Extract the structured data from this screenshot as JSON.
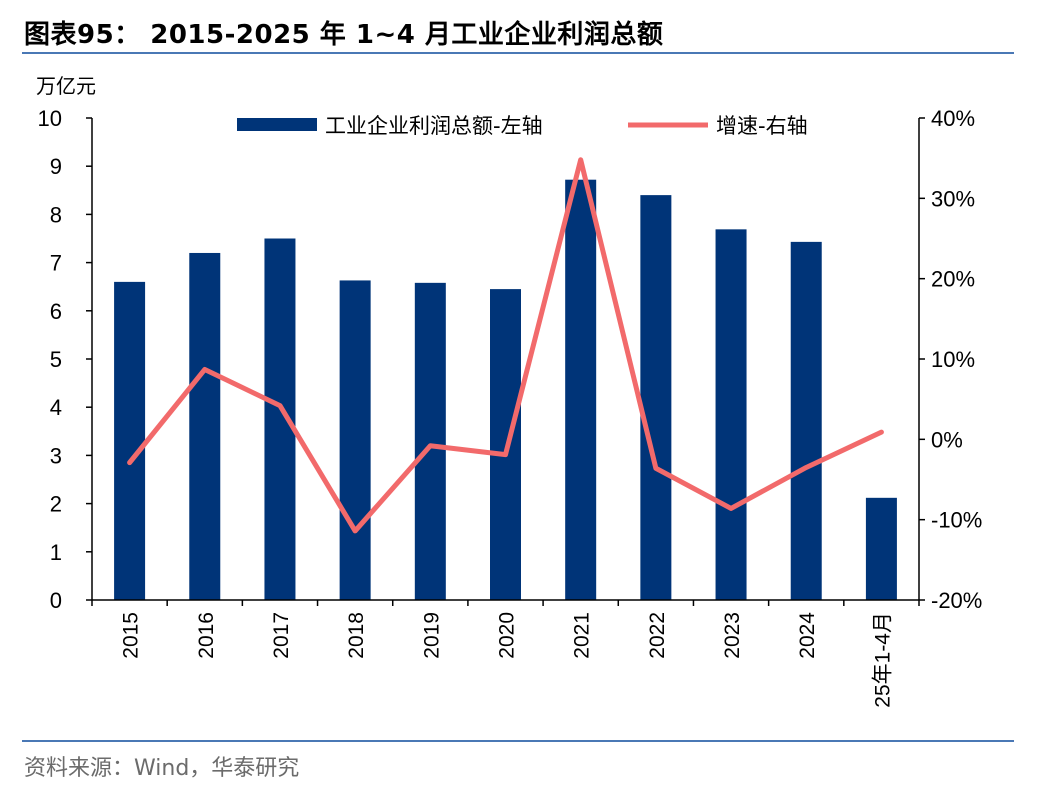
{
  "title": "图表95： 2015-2025 年 1~4 月工业企业利润总额",
  "source": "资料来源：Wind，华泰研究",
  "chart_data": {
    "type": "bar",
    "categories": [
      "2015",
      "2016",
      "2017",
      "2018",
      "2019",
      "2020",
      "2021",
      "2022",
      "2023",
      "2024",
      "25年1-4月"
    ],
    "left_axis": {
      "unit": "万亿元",
      "ylim": [
        0,
        10
      ],
      "ticks": [
        "0",
        "1",
        "2",
        "3",
        "4",
        "5",
        "6",
        "7",
        "8",
        "9",
        "10"
      ]
    },
    "right_axis": {
      "ylim": [
        -20,
        40
      ],
      "ticks": [
        "-20%",
        "-10%",
        "0%",
        "10%",
        "20%",
        "30%",
        "40%"
      ]
    },
    "series": [
      {
        "name": "工业企业利润总额-左轴",
        "type": "bar",
        "axis": "left",
        "color": "#003478",
        "values": [
          6.6,
          7.2,
          7.5,
          6.63,
          6.58,
          6.45,
          8.72,
          8.4,
          7.69,
          7.43,
          2.12
        ]
      },
      {
        "name": "增速-右轴",
        "type": "line",
        "axis": "right",
        "color": "#f26a6b",
        "values": [
          -2.9,
          8.7,
          4.2,
          -11.4,
          -0.8,
          -1.9,
          34.8,
          -3.6,
          -8.6,
          -3.5,
          0.9
        ]
      }
    ],
    "grid": false,
    "legend": "top-center"
  }
}
